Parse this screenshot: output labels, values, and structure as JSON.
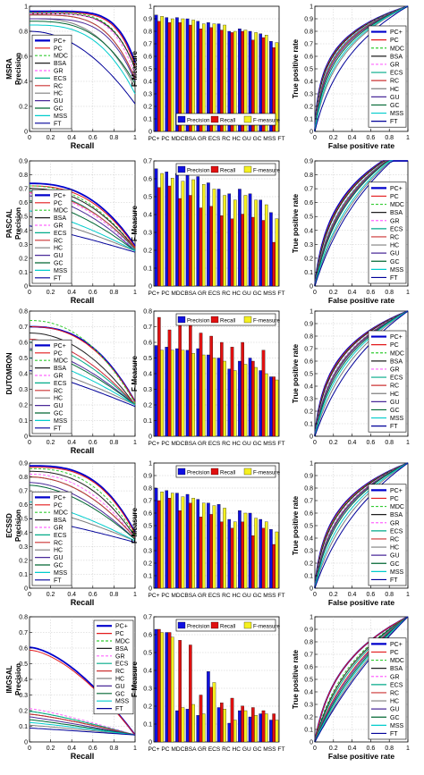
{
  "methods": [
    "PC+",
    "PC",
    "MDC",
    "BSA",
    "GR",
    "ECS",
    "RC",
    "HC",
    "GU",
    "GC",
    "MSS",
    "FT"
  ],
  "method_colors": [
    "#0000cc",
    "#e31a1c",
    "#33cc33",
    "#1f1f1f",
    "#ff66ff",
    "#00aa88",
    "#cc3333",
    "#7f7f7f",
    "#4a2a99",
    "#006633",
    "#00cccc",
    "#000099"
  ],
  "method_dashed": [
    false,
    false,
    true,
    false,
    true,
    false,
    false,
    false,
    false,
    false,
    false,
    false
  ],
  "bar_labels": [
    "Precision",
    "Recall",
    "F-measure"
  ],
  "bar_colors": [
    "#1010e0",
    "#e01010",
    "#f5f020"
  ],
  "axis_labels": {
    "recall": "Recall",
    "fpr": "False positive rate",
    "tpr": "True positive rate",
    "fmeasure": "F-Measure"
  },
  "bar_xtick_label": "PC+ PC MDCBSA GR ECS RC  HC  GU  GC MSS FT",
  "unit_ticks": [
    "0",
    "0.2",
    "0.4",
    "0.6",
    "0.8",
    "1"
  ],
  "roc_ticks": [
    "0",
    "0.2",
    "0.4",
    "0.6",
    "0.8",
    "1"
  ],
  "chart_data": [
    {
      "dataset": "MSRA",
      "pr": {
        "type": "line",
        "xlabel": "Recall",
        "ylabel": "Precision",
        "xlim": [
          0,
          1
        ],
        "ylim": [
          0,
          1
        ],
        "yticks": [
          "0",
          "0.2",
          "0.4",
          "0.6",
          "0.8",
          "1"
        ],
        "legend": "bottom-left",
        "series": [
          {
            "name": "PC+",
            "p0": 0.96,
            "p1": 0.55,
            "k": 6
          },
          {
            "name": "PC",
            "p0": 0.95,
            "p1": 0.52,
            "k": 6
          },
          {
            "name": "MDC",
            "p0": 0.95,
            "p1": 0.5,
            "k": 5
          },
          {
            "name": "BSA",
            "p0": 0.94,
            "p1": 0.5,
            "k": 5
          },
          {
            "name": "GR",
            "p0": 0.94,
            "p1": 0.45,
            "k": 5
          },
          {
            "name": "ECS",
            "p0": 0.93,
            "p1": 0.42,
            "k": 4
          },
          {
            "name": "RC",
            "p0": 0.93,
            "p1": 0.42,
            "k": 4
          },
          {
            "name": "HC",
            "p0": 0.9,
            "p1": 0.35,
            "k": 3
          },
          {
            "name": "GU",
            "p0": 0.9,
            "p1": 0.4,
            "k": 4
          },
          {
            "name": "GC",
            "p0": 0.88,
            "p1": 0.38,
            "k": 3
          },
          {
            "name": "MSS",
            "p0": 0.85,
            "p1": 0.3,
            "k": 3
          },
          {
            "name": "FT",
            "p0": 0.8,
            "p1": 0.22,
            "k": 2
          }
        ]
      },
      "bars": {
        "type": "bar",
        "ylim": [
          0,
          1
        ],
        "yticks": [
          "0",
          "0.1",
          "0.2",
          "0.3",
          "0.4",
          "0.5",
          "0.6",
          "0.7",
          "0.8",
          "0.9",
          "1"
        ],
        "legend": "bottom",
        "precision": [
          0.93,
          0.91,
          0.91,
          0.9,
          0.88,
          0.87,
          0.86,
          0.8,
          0.82,
          0.8,
          0.78,
          0.72
        ],
        "recall": [
          0.88,
          0.87,
          0.87,
          0.85,
          0.82,
          0.83,
          0.81,
          0.79,
          0.8,
          0.73,
          0.75,
          0.67
        ],
        "fmeasure": [
          0.92,
          0.9,
          0.9,
          0.89,
          0.86,
          0.86,
          0.85,
          0.8,
          0.81,
          0.79,
          0.77,
          0.71
        ]
      },
      "roc": {
        "type": "line",
        "xlabel": "False positive rate",
        "ylabel": "True positive rate",
        "xlim": [
          0,
          1
        ],
        "ylim": [
          0,
          1
        ],
        "legend": "right",
        "yticks": [
          "0",
          "0.1",
          "0.2",
          "0.3",
          "0.4",
          "0.5",
          "0.6",
          "0.7",
          "0.8",
          "0.9",
          "1"
        ],
        "auc_k": [
          60,
          55,
          52,
          48,
          40,
          35,
          30,
          12,
          25,
          20,
          15,
          6
        ]
      }
    },
    {
      "dataset": "PASCAL",
      "pr": {
        "type": "line",
        "xlabel": "Recall",
        "ylabel": "Precision",
        "xlim": [
          0,
          1
        ],
        "ylim": [
          0,
          1
        ],
        "yticks": [
          "0",
          "0.1",
          "0.2",
          "0.3",
          "0.4",
          "0.5",
          "0.6",
          "0.7",
          "0.8",
          "0.9"
        ],
        "legend": "bottom-left",
        "series": [
          {
            "name": "PC+",
            "p0": 0.82,
            "p1": 0.32,
            "k": 2.5
          },
          {
            "name": "PC",
            "p0": 0.8,
            "p1": 0.31,
            "k": 2.5
          },
          {
            "name": "MDC",
            "p0": 0.8,
            "p1": 0.3,
            "k": 2.2
          },
          {
            "name": "BSA",
            "p0": 0.78,
            "p1": 0.3,
            "k": 2.2
          },
          {
            "name": "GR",
            "p0": 0.74,
            "p1": 0.28,
            "k": 2
          },
          {
            "name": "ECS",
            "p0": 0.76,
            "p1": 0.29,
            "k": 2
          },
          {
            "name": "RC",
            "p0": 0.75,
            "p1": 0.3,
            "k": 2
          },
          {
            "name": "HC",
            "p0": 0.55,
            "p1": 0.28,
            "k": 1.3
          },
          {
            "name": "GU",
            "p0": 0.72,
            "p1": 0.28,
            "k": 1.8
          },
          {
            "name": "GC",
            "p0": 0.68,
            "p1": 0.28,
            "k": 1.6
          },
          {
            "name": "MSS",
            "p0": 0.6,
            "p1": 0.28,
            "k": 1.4
          },
          {
            "name": "FT",
            "p0": 0.48,
            "p1": 0.27,
            "k": 1.2
          }
        ]
      },
      "bars": {
        "type": "bar",
        "ylim": [
          0,
          0.8
        ],
        "yticks": [
          "0",
          "0.1",
          "0.2",
          "0.3",
          "0.4",
          "0.5",
          "0.6",
          "0.7"
        ],
        "legend": "top",
        "precision": [
          0.75,
          0.73,
          0.72,
          0.71,
          0.7,
          0.66,
          0.62,
          0.59,
          0.62,
          0.59,
          0.55,
          0.47
        ],
        "recall": [
          0.63,
          0.64,
          0.56,
          0.58,
          0.5,
          0.51,
          0.45,
          0.43,
          0.46,
          0.44,
          0.42,
          0.28
        ],
        "fmeasure": [
          0.72,
          0.69,
          0.67,
          0.68,
          0.65,
          0.62,
          0.58,
          0.55,
          0.58,
          0.55,
          0.52,
          0.43
        ]
      },
      "roc": {
        "type": "line",
        "xlabel": "False positive rate",
        "ylabel": "True positive rate",
        "xlim": [
          0,
          1
        ],
        "ylim": [
          0,
          0.9
        ],
        "legend": "bottom-right",
        "yticks": [
          "0",
          "0.1",
          "0.2",
          "0.3",
          "0.4",
          "0.5",
          "0.6",
          "0.7",
          "0.8",
          "0.9"
        ],
        "auc_k": [
          18,
          16,
          15,
          14,
          11,
          10,
          9,
          4,
          8,
          7,
          5,
          3
        ]
      }
    },
    {
      "dataset": "DUTOMRON",
      "pr": {
        "type": "line",
        "xlabel": "Recall",
        "ylabel": "",
        "xlim": [
          0,
          1
        ],
        "ylim": [
          0,
          0.8
        ],
        "yticks": [
          "0",
          "0.1",
          "0.2",
          "0.3",
          "0.4",
          "0.5",
          "0.6",
          "0.7",
          "0.8"
        ],
        "legend": "bottom-left",
        "series": [
          {
            "name": "PC+",
            "p0": 0.7,
            "p1": 0.22,
            "k": 2.5
          },
          {
            "name": "PC",
            "p0": 0.7,
            "p1": 0.22,
            "k": 2.4
          },
          {
            "name": "MDC",
            "p0": 0.74,
            "p1": 0.21,
            "k": 2.2
          },
          {
            "name": "BSA",
            "p0": 0.66,
            "p1": 0.2,
            "k": 2
          },
          {
            "name": "GR",
            "p0": 0.62,
            "p1": 0.2,
            "k": 1.8
          },
          {
            "name": "ECS",
            "p0": 0.6,
            "p1": 0.2,
            "k": 1.7
          },
          {
            "name": "RC",
            "p0": 0.62,
            "p1": 0.2,
            "k": 1.8
          },
          {
            "name": "HC",
            "p0": 0.45,
            "p1": 0.2,
            "k": 1.3
          },
          {
            "name": "GU",
            "p0": 0.56,
            "p1": 0.2,
            "k": 1.6
          },
          {
            "name": "GC",
            "p0": 0.55,
            "p1": 0.2,
            "k": 1.5
          },
          {
            "name": "MSS",
            "p0": 0.5,
            "p1": 0.2,
            "k": 1.4
          },
          {
            "name": "FT",
            "p0": 0.42,
            "p1": 0.19,
            "k": 1.2
          }
        ]
      },
      "bars": {
        "type": "bar",
        "ylim": [
          0,
          0.8
        ],
        "yticks": [
          "0",
          "0.1",
          "0.2",
          "0.3",
          "0.4",
          "0.5",
          "0.6",
          "0.7",
          "0.8"
        ],
        "legend": "top",
        "precision": [
          0.58,
          0.57,
          0.56,
          0.55,
          0.56,
          0.52,
          0.5,
          0.43,
          0.48,
          0.5,
          0.42,
          0.38
        ],
        "recall": [
          0.76,
          0.68,
          0.72,
          0.71,
          0.66,
          0.64,
          0.6,
          0.57,
          0.6,
          0.48,
          0.55,
          0.38
        ],
        "fmeasure": [
          0.55,
          0.55,
          0.55,
          0.53,
          0.52,
          0.5,
          0.48,
          0.42,
          0.46,
          0.44,
          0.4,
          0.36
        ]
      },
      "roc": {
        "type": "line",
        "xlabel": "",
        "ylabel": "True positive rate",
        "xlim": [
          0,
          1
        ],
        "ylim": [
          0,
          1
        ],
        "legend": "right",
        "yticks": [
          "0",
          "0.1",
          "0.2",
          "0.3",
          "0.4",
          "0.5",
          "0.6",
          "0.7",
          "0.8",
          "0.9",
          "1"
        ],
        "auc_k": [
          24,
          22,
          20,
          19,
          15,
          13,
          12,
          5,
          11,
          9,
          7,
          3
        ]
      }
    },
    {
      "dataset": "ECSSD",
      "pr": {
        "type": "line",
        "xlabel": "Recall",
        "ylabel": "Precision",
        "xlim": [
          0,
          1
        ],
        "ylim": [
          0,
          0.9
        ],
        "yticks": [
          "0",
          "0.1",
          "0.2",
          "0.3",
          "0.4",
          "0.5",
          "0.6",
          "0.7",
          "0.8",
          "0.9"
        ],
        "legend": "bottom-left",
        "series": [
          {
            "name": "PC+",
            "p0": 0.88,
            "p1": 0.4,
            "k": 3
          },
          {
            "name": "PC",
            "p0": 0.87,
            "p1": 0.39,
            "k": 3
          },
          {
            "name": "MDC",
            "p0": 0.86,
            "p1": 0.38,
            "k": 2.6
          },
          {
            "name": "BSA",
            "p0": 0.84,
            "p1": 0.37,
            "k": 2.4
          },
          {
            "name": "GR",
            "p0": 0.82,
            "p1": 0.36,
            "k": 2.2
          },
          {
            "name": "ECS",
            "p0": 0.8,
            "p1": 0.36,
            "k": 2
          },
          {
            "name": "RC",
            "p0": 0.8,
            "p1": 0.36,
            "k": 2
          },
          {
            "name": "HC",
            "p0": 0.58,
            "p1": 0.34,
            "k": 1.3
          },
          {
            "name": "GU",
            "p0": 0.76,
            "p1": 0.35,
            "k": 1.8
          },
          {
            "name": "GC",
            "p0": 0.74,
            "p1": 0.35,
            "k": 1.7
          },
          {
            "name": "MSS",
            "p0": 0.62,
            "p1": 0.34,
            "k": 1.4
          },
          {
            "name": "FT",
            "p0": 0.5,
            "p1": 0.33,
            "k": 1.2
          }
        ]
      },
      "bars": {
        "type": "bar",
        "ylim": [
          0,
          1
        ],
        "yticks": [
          "0",
          "0.1",
          "0.2",
          "0.3",
          "0.4",
          "0.5",
          "0.6",
          "0.7",
          "0.8",
          "0.9",
          "1"
        ],
        "legend": "top",
        "precision": [
          0.8,
          0.78,
          0.76,
          0.75,
          0.71,
          0.68,
          0.67,
          0.55,
          0.62,
          0.6,
          0.55,
          0.47
        ],
        "recall": [
          0.7,
          0.72,
          0.62,
          0.68,
          0.57,
          0.59,
          0.53,
          0.48,
          0.53,
          0.42,
          0.48,
          0.35
        ],
        "fmeasure": [
          0.77,
          0.76,
          0.73,
          0.72,
          0.68,
          0.66,
          0.64,
          0.53,
          0.6,
          0.56,
          0.53,
          0.45
        ]
      },
      "roc": {
        "type": "line",
        "xlabel": "False positive rate",
        "ylabel": "True positive rate",
        "xlim": [
          0,
          1
        ],
        "ylim": [
          0,
          1
        ],
        "legend": "bottom-right",
        "yticks": [
          "0",
          "0.1",
          "0.2",
          "0.3",
          "0.4",
          "0.5",
          "0.6",
          "0.7",
          "0.8",
          "0.9",
          "1"
        ],
        "auc_k": [
          26,
          24,
          22,
          20,
          16,
          14,
          13,
          5,
          12,
          10,
          7,
          3
        ]
      }
    },
    {
      "dataset": "IMGSAL",
      "pr": {
        "type": "line",
        "xlabel": "Recall",
        "ylabel": "Precision",
        "xlim": [
          0,
          1
        ],
        "ylim": [
          0,
          0.9
        ],
        "yticks": [
          "0",
          "0.1",
          "0.2",
          "0.3",
          "0.4",
          "0.5",
          "0.6",
          "0.7",
          "0.8"
        ],
        "legend": "top-right",
        "series": [
          {
            "name": "PC+",
            "p0": 0.68,
            "p1": 0.05,
            "k": 1.6
          },
          {
            "name": "PC",
            "p0": 0.66,
            "p1": 0.05,
            "k": 1.6
          },
          {
            "name": "MDC",
            "p0": 0.22,
            "p1": 0.05,
            "k": 1.2
          },
          {
            "name": "BSA",
            "p0": 0.2,
            "p1": 0.05,
            "k": 1.2
          },
          {
            "name": "GR",
            "p0": 0.24,
            "p1": 0.05,
            "k": 1.2
          },
          {
            "name": "ECS",
            "p0": 0.22,
            "p1": 0.05,
            "k": 1.2
          },
          {
            "name": "RC",
            "p0": 0.2,
            "p1": 0.05,
            "k": 1.2
          },
          {
            "name": "HC",
            "p0": 0.12,
            "p1": 0.05,
            "k": 1.1
          },
          {
            "name": "GU",
            "p0": 0.18,
            "p1": 0.05,
            "k": 1.1
          },
          {
            "name": "GC",
            "p0": 0.16,
            "p1": 0.05,
            "k": 1.1
          },
          {
            "name": "MSS",
            "p0": 0.14,
            "p1": 0.05,
            "k": 1.1
          },
          {
            "name": "FT",
            "p0": 0.1,
            "p1": 0.05,
            "k": 1.05
          }
        ]
      },
      "bars": {
        "type": "bar",
        "ylim": [
          0,
          0.8
        ],
        "yticks": [
          "0",
          "0.1",
          "0.2",
          "0.3",
          "0.4",
          "0.5",
          "0.6",
          "0.7"
        ],
        "legend": "top",
        "precision": [
          0.72,
          0.7,
          0.2,
          0.21,
          0.17,
          0.45,
          0.22,
          0.12,
          0.2,
          0.16,
          0.18,
          0.14
        ],
        "recall": [
          0.72,
          0.7,
          0.65,
          0.62,
          0.3,
          0.35,
          0.25,
          0.28,
          0.23,
          0.22,
          0.2,
          0.18
        ],
        "fmeasure": [
          0.7,
          0.67,
          0.22,
          0.24,
          0.18,
          0.38,
          0.21,
          0.14,
          0.2,
          0.17,
          0.18,
          0.14
        ]
      },
      "roc": {
        "type": "line",
        "xlabel": "False positive rate",
        "ylabel": "True positive rate",
        "xlim": [
          0,
          1
        ],
        "ylim": [
          0,
          1
        ],
        "legend": "bottom-right",
        "yticks": [
          "0",
          "0.1",
          "0.2",
          "0.3",
          "0.4",
          "0.5",
          "0.6",
          "0.7",
          "0.8",
          "0.9",
          "1"
        ],
        "auc_k": [
          10,
          10,
          6,
          5,
          3,
          4,
          3,
          1.2,
          2.5,
          2,
          1.6,
          0.9
        ]
      }
    }
  ]
}
